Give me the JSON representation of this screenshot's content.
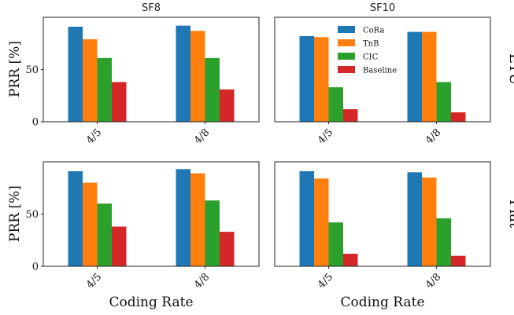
{
  "column_titles": [
    "SF8",
    "SF10"
  ],
  "row_labels": [
    "ETU",
    "Flat"
  ],
  "axis_labels": {
    "y": "PRR [%]",
    "x": "Coding Rate"
  },
  "legend": {
    "placement": "upper-right of SF10 / ETU panel",
    "entries": [
      "CoRa",
      "TnB",
      "CIC",
      "Baseline"
    ]
  },
  "colors": {
    "CoRa": "#1f77b4",
    "TnB": "#ff7f0e",
    "CIC": "#2ca02c",
    "Baseline": "#d62728"
  },
  "chart_data": [
    {
      "type": "bar",
      "panel": "SF8-ETU",
      "categories": [
        "4/5",
        "4/8"
      ],
      "ylim": [
        0,
        100
      ],
      "yticks": [
        0,
        50
      ],
      "series": [
        {
          "name": "CoRa",
          "values": [
            91,
            92
          ]
        },
        {
          "name": "TnB",
          "values": [
            79,
            87
          ]
        },
        {
          "name": "CIC",
          "values": [
            61,
            61
          ]
        },
        {
          "name": "Baseline",
          "values": [
            38,
            31
          ]
        }
      ]
    },
    {
      "type": "bar",
      "panel": "SF10-ETU",
      "categories": [
        "4/5",
        "4/8"
      ],
      "ylim": [
        0,
        100
      ],
      "yticks": [
        0,
        50
      ],
      "series": [
        {
          "name": "CoRa",
          "values": [
            82,
            86
          ]
        },
        {
          "name": "TnB",
          "values": [
            81,
            86
          ]
        },
        {
          "name": "CIC",
          "values": [
            33,
            38
          ]
        },
        {
          "name": "Baseline",
          "values": [
            12,
            9
          ]
        }
      ]
    },
    {
      "type": "bar",
      "panel": "SF8-Flat",
      "categories": [
        "4/5",
        "4/8"
      ],
      "ylim": [
        0,
        100
      ],
      "yticks": [
        0,
        50
      ],
      "series": [
        {
          "name": "CoRa",
          "values": [
            91,
            93
          ]
        },
        {
          "name": "TnB",
          "values": [
            80,
            89
          ]
        },
        {
          "name": "CIC",
          "values": [
            60,
            63
          ]
        },
        {
          "name": "Baseline",
          "values": [
            38,
            33
          ]
        }
      ]
    },
    {
      "type": "bar",
      "panel": "SF10-Flat",
      "categories": [
        "4/5",
        "4/8"
      ],
      "ylim": [
        0,
        100
      ],
      "yticks": [
        0,
        50
      ],
      "series": [
        {
          "name": "CoRa",
          "values": [
            91,
            90
          ]
        },
        {
          "name": "TnB",
          "values": [
            84,
            85
          ]
        },
        {
          "name": "CIC",
          "values": [
            42,
            46
          ]
        },
        {
          "name": "Baseline",
          "values": [
            12,
            10
          ]
        }
      ]
    }
  ]
}
